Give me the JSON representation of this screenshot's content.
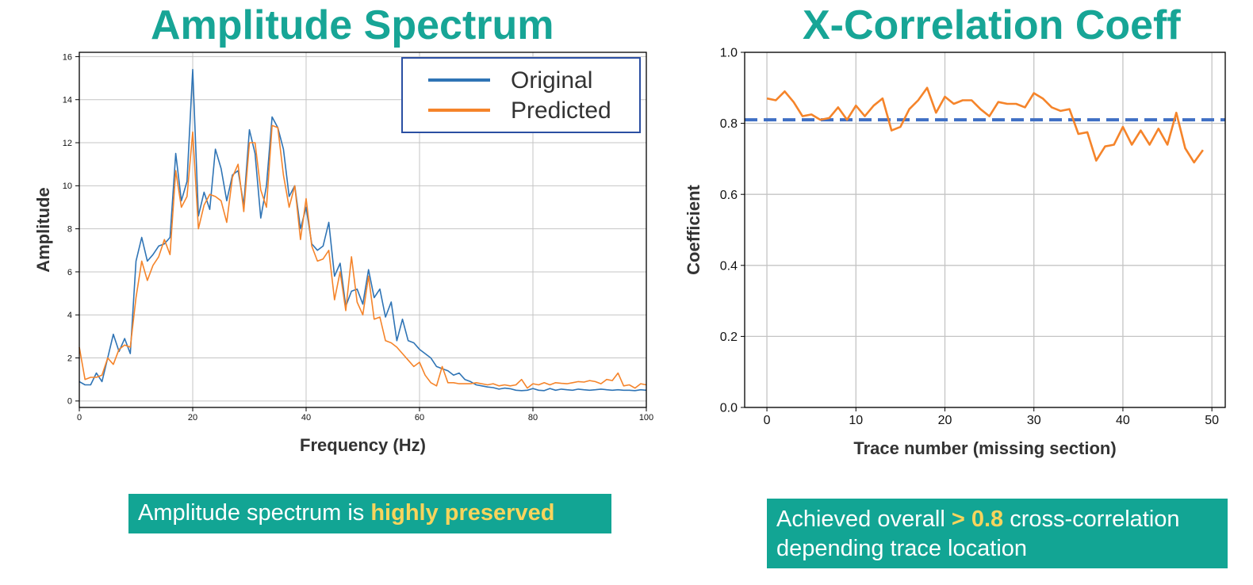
{
  "colors": {
    "title": "#17a596",
    "caption_bg": "#12a594",
    "caption_highlight": "#f8d45c",
    "original": "#2f74b5",
    "predicted": "#f5842a",
    "threshold": "#3f6fc4",
    "grid": "#c4c4c4",
    "legend_border": "#2b4fa2"
  },
  "titles": {
    "left": "Amplitude Spectrum",
    "right": "X-Correlation Coeff"
  },
  "captions": {
    "left": {
      "text": "Amplitude spectrum is ",
      "highlight": "highly preserved"
    },
    "right": {
      "line1_pre": "Achieved overall ",
      "line1_highlight": "> 0.8",
      "line1_post": " cross-correlation",
      "line2": "depending trace location"
    }
  },
  "chart_data": [
    {
      "type": "line",
      "xlabel": "Frequency (Hz)",
      "ylabel": "Amplitude",
      "xlim": [
        0,
        100
      ],
      "ylim": [
        -0.3,
        16.2
      ],
      "xticks": [
        0,
        20,
        40,
        60,
        80,
        100
      ],
      "yticks": [
        0,
        2,
        4,
        6,
        8,
        10,
        12,
        14,
        16
      ],
      "grid": true,
      "legend": "top-right",
      "series": [
        {
          "name": "Original",
          "color": "#2f74b5",
          "x": [
            0,
            1,
            2,
            3,
            4,
            5,
            6,
            7,
            8,
            9,
            10,
            11,
            12,
            13,
            14,
            15,
            16,
            17,
            18,
            19,
            20,
            21,
            22,
            23,
            24,
            25,
            26,
            27,
            28,
            29,
            30,
            31,
            32,
            33,
            34,
            35,
            36,
            37,
            38,
            39,
            40,
            41,
            42,
            43,
            44,
            45,
            46,
            47,
            48,
            49,
            50,
            51,
            52,
            53,
            54,
            55,
            56,
            57,
            58,
            59,
            60,
            61,
            62,
            63,
            64,
            65,
            66,
            67,
            68,
            69,
            70,
            71,
            72,
            73,
            74,
            75,
            76,
            77,
            78,
            79,
            80,
            81,
            82,
            83,
            84,
            85,
            86,
            87,
            88,
            89,
            90,
            91,
            92,
            93,
            94,
            95,
            96,
            97,
            98,
            99,
            100
          ],
          "y": [
            0.9,
            0.75,
            0.75,
            1.3,
            0.9,
            2.0,
            3.1,
            2.3,
            2.9,
            2.2,
            6.5,
            7.6,
            6.5,
            6.8,
            7.2,
            7.3,
            7.6,
            11.5,
            9.3,
            10.2,
            15.4,
            8.6,
            9.7,
            8.9,
            11.7,
            10.8,
            9.3,
            10.5,
            10.7,
            9.1,
            12.6,
            11.5,
            8.5,
            10.0,
            13.2,
            12.7,
            11.7,
            9.5,
            10.0,
            8.0,
            9.0,
            7.3,
            7.0,
            7.2,
            8.3,
            5.8,
            6.4,
            4.4,
            5.1,
            5.2,
            4.5,
            6.1,
            4.8,
            5.2,
            3.9,
            4.6,
            2.8,
            3.8,
            2.8,
            2.7,
            2.4,
            2.2,
            2.0,
            1.6,
            1.5,
            1.4,
            1.2,
            1.3,
            1.0,
            0.9,
            0.75,
            0.7,
            0.65,
            0.62,
            0.55,
            0.6,
            0.57,
            0.5,
            0.48,
            0.5,
            0.58,
            0.5,
            0.48,
            0.58,
            0.5,
            0.55,
            0.52,
            0.5,
            0.55,
            0.52,
            0.5,
            0.52,
            0.55,
            0.52,
            0.5,
            0.52,
            0.5,
            0.5,
            0.48,
            0.52,
            0.5
          ]
        },
        {
          "name": "Predicted",
          "color": "#f5842a",
          "x": [
            0,
            1,
            2,
            3,
            4,
            5,
            6,
            7,
            8,
            9,
            10,
            11,
            12,
            13,
            14,
            15,
            16,
            17,
            18,
            19,
            20,
            21,
            22,
            23,
            24,
            25,
            26,
            27,
            28,
            29,
            30,
            31,
            32,
            33,
            34,
            35,
            36,
            37,
            38,
            39,
            40,
            41,
            42,
            43,
            44,
            45,
            46,
            47,
            48,
            49,
            50,
            51,
            52,
            53,
            54,
            55,
            56,
            57,
            58,
            59,
            60,
            61,
            62,
            63,
            64,
            65,
            66,
            67,
            68,
            69,
            70,
            71,
            72,
            73,
            74,
            75,
            76,
            77,
            78,
            79,
            80,
            81,
            82,
            83,
            84,
            85,
            86,
            87,
            88,
            89,
            90,
            91,
            92,
            93,
            94,
            95,
            96,
            97,
            98,
            99,
            100
          ],
          "y": [
            2.5,
            1.0,
            1.1,
            1.1,
            1.2,
            2.0,
            1.7,
            2.4,
            2.6,
            2.5,
            4.8,
            6.5,
            5.6,
            6.3,
            6.7,
            7.5,
            6.8,
            10.7,
            9.0,
            9.5,
            12.5,
            8.0,
            9.1,
            9.6,
            9.5,
            9.3,
            8.3,
            10.4,
            11.0,
            8.8,
            12.0,
            12.0,
            9.8,
            9.0,
            12.8,
            12.7,
            10.5,
            9.0,
            10.0,
            7.5,
            9.4,
            7.2,
            6.5,
            6.6,
            7.0,
            4.7,
            6.0,
            4.2,
            6.7,
            4.6,
            4.0,
            5.8,
            3.8,
            3.9,
            2.8,
            2.7,
            2.5,
            2.2,
            1.9,
            1.6,
            1.8,
            1.2,
            0.85,
            0.7,
            1.6,
            0.85,
            0.85,
            0.8,
            0.8,
            0.8,
            0.85,
            0.8,
            0.75,
            0.8,
            0.7,
            0.75,
            0.7,
            0.75,
            1.0,
            0.6,
            0.8,
            0.75,
            0.85,
            0.75,
            0.85,
            0.82,
            0.8,
            0.85,
            0.9,
            0.88,
            0.95,
            0.9,
            0.8,
            1.0,
            0.95,
            1.3,
            0.7,
            0.75,
            0.6,
            0.8,
            0.75
          ]
        }
      ]
    },
    {
      "type": "line",
      "xlabel": "Trace number (missing section)",
      "ylabel": "Coefficient",
      "xlim": [
        -2.5,
        51.5
      ],
      "ylim": [
        0.0,
        1.0
      ],
      "xticks": [
        0,
        10,
        20,
        30,
        40,
        50
      ],
      "yticks": [
        0.0,
        0.2,
        0.4,
        0.6,
        0.8,
        1.0
      ],
      "ytick_labels": [
        "0.0",
        "0.2",
        "0.4",
        "0.6",
        "0.8",
        "1.0"
      ],
      "grid": true,
      "threshold": 0.81,
      "series": [
        {
          "color": "#f5842a",
          "x": [
            0,
            1,
            2,
            3,
            4,
            5,
            6,
            7,
            8,
            9,
            10,
            11,
            12,
            13,
            14,
            15,
            16,
            17,
            18,
            19,
            20,
            21,
            22,
            23,
            24,
            25,
            26,
            27,
            28,
            29,
            30,
            31,
            32,
            33,
            34,
            35,
            36,
            37,
            38,
            39,
            40,
            41,
            42,
            43,
            44,
            45,
            46,
            47,
            48,
            49
          ],
          "y": [
            0.87,
            0.865,
            0.89,
            0.86,
            0.82,
            0.825,
            0.81,
            0.815,
            0.845,
            0.81,
            0.85,
            0.82,
            0.85,
            0.87,
            0.78,
            0.79,
            0.84,
            0.865,
            0.9,
            0.83,
            0.875,
            0.855,
            0.865,
            0.865,
            0.84,
            0.82,
            0.86,
            0.855,
            0.855,
            0.845,
            0.885,
            0.87,
            0.845,
            0.835,
            0.84,
            0.77,
            0.775,
            0.695,
            0.735,
            0.74,
            0.79,
            0.74,
            0.78,
            0.74,
            0.785,
            0.74,
            0.83,
            0.73,
            0.69,
            0.725
          ]
        }
      ]
    }
  ]
}
